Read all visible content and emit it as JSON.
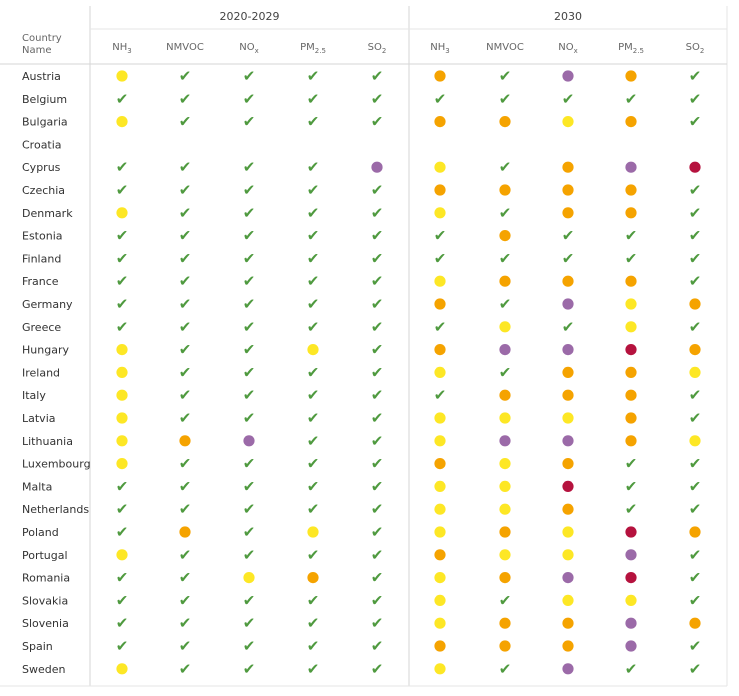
{
  "chart_data": {
    "type": "table",
    "corner_label": [
      "Country",
      "Name"
    ],
    "groups": [
      "2020-2029",
      "2030"
    ],
    "pollutants": [
      {
        "base": "NH",
        "sub": "3"
      },
      {
        "base": "NMVOC",
        "sub": ""
      },
      {
        "base": "NO",
        "sub": "x"
      },
      {
        "base": "PM",
        "sub": "2.5"
      },
      {
        "base": "SO",
        "sub": "2"
      }
    ],
    "status_colors": {
      "check": "#4f9a3f",
      "yellow": "#fde725",
      "orange": "#f5a300",
      "purple": "#9b6aa8",
      "crimson": "#b5123e"
    },
    "rows": [
      {
        "country": "Austria",
        "y2020": [
          "yellow",
          "check",
          "check",
          "check",
          "check"
        ],
        "y2030": [
          "orange",
          "check",
          "purple",
          "orange",
          "check"
        ]
      },
      {
        "country": "Belgium",
        "y2020": [
          "check",
          "check",
          "check",
          "check",
          "check"
        ],
        "y2030": [
          "check",
          "check",
          "check",
          "check",
          "check"
        ]
      },
      {
        "country": "Bulgaria",
        "y2020": [
          "yellow",
          "check",
          "check",
          "check",
          "check"
        ],
        "y2030": [
          "orange",
          "orange",
          "yellow",
          "orange",
          "check"
        ]
      },
      {
        "country": "Croatia",
        "y2020": [
          "",
          "",
          "",
          "",
          ""
        ],
        "y2030": [
          "",
          "",
          "",
          "",
          ""
        ]
      },
      {
        "country": "Cyprus",
        "y2020": [
          "check",
          "check",
          "check",
          "check",
          "purple"
        ],
        "y2030": [
          "yellow",
          "check",
          "orange",
          "purple",
          "crimson"
        ]
      },
      {
        "country": "Czechia",
        "y2020": [
          "check",
          "check",
          "check",
          "check",
          "check"
        ],
        "y2030": [
          "orange",
          "orange",
          "orange",
          "orange",
          "check"
        ]
      },
      {
        "country": "Denmark",
        "y2020": [
          "yellow",
          "check",
          "check",
          "check",
          "check"
        ],
        "y2030": [
          "yellow",
          "check",
          "orange",
          "orange",
          "check"
        ]
      },
      {
        "country": "Estonia",
        "y2020": [
          "check",
          "check",
          "check",
          "check",
          "check"
        ],
        "y2030": [
          "check",
          "orange",
          "check",
          "check",
          "check"
        ]
      },
      {
        "country": "Finland",
        "y2020": [
          "check",
          "check",
          "check",
          "check",
          "check"
        ],
        "y2030": [
          "check",
          "check",
          "check",
          "check",
          "check"
        ]
      },
      {
        "country": "France",
        "y2020": [
          "check",
          "check",
          "check",
          "check",
          "check"
        ],
        "y2030": [
          "yellow",
          "orange",
          "orange",
          "orange",
          "check"
        ]
      },
      {
        "country": "Germany",
        "y2020": [
          "check",
          "check",
          "check",
          "check",
          "check"
        ],
        "y2030": [
          "orange",
          "check",
          "purple",
          "yellow",
          "orange"
        ]
      },
      {
        "country": "Greece",
        "y2020": [
          "check",
          "check",
          "check",
          "check",
          "check"
        ],
        "y2030": [
          "check",
          "yellow",
          "check",
          "yellow",
          "check"
        ]
      },
      {
        "country": "Hungary",
        "y2020": [
          "yellow",
          "check",
          "check",
          "yellow",
          "check"
        ],
        "y2030": [
          "orange",
          "purple",
          "purple",
          "crimson",
          "orange"
        ]
      },
      {
        "country": "Ireland",
        "y2020": [
          "yellow",
          "check",
          "check",
          "check",
          "check"
        ],
        "y2030": [
          "yellow",
          "check",
          "orange",
          "orange",
          "yellow"
        ]
      },
      {
        "country": "Italy",
        "y2020": [
          "yellow",
          "check",
          "check",
          "check",
          "check"
        ],
        "y2030": [
          "check",
          "orange",
          "orange",
          "orange",
          "check"
        ]
      },
      {
        "country": "Latvia",
        "y2020": [
          "yellow",
          "check",
          "check",
          "check",
          "check"
        ],
        "y2030": [
          "yellow",
          "yellow",
          "yellow",
          "orange",
          "check"
        ]
      },
      {
        "country": "Lithuania",
        "y2020": [
          "yellow",
          "orange",
          "purple",
          "check",
          "check"
        ],
        "y2030": [
          "yellow",
          "purple",
          "purple",
          "orange",
          "yellow"
        ]
      },
      {
        "country": "Luxembourg",
        "y2020": [
          "yellow",
          "check",
          "check",
          "check",
          "check"
        ],
        "y2030": [
          "orange",
          "yellow",
          "orange",
          "check",
          "check"
        ]
      },
      {
        "country": "Malta",
        "y2020": [
          "check",
          "check",
          "check",
          "check",
          "check"
        ],
        "y2030": [
          "yellow",
          "yellow",
          "crimson",
          "check",
          "check"
        ]
      },
      {
        "country": "Netherlands",
        "y2020": [
          "check",
          "check",
          "check",
          "check",
          "check"
        ],
        "y2030": [
          "yellow",
          "yellow",
          "orange",
          "check",
          "check"
        ]
      },
      {
        "country": "Poland",
        "y2020": [
          "check",
          "orange",
          "check",
          "yellow",
          "check"
        ],
        "y2030": [
          "yellow",
          "orange",
          "yellow",
          "crimson",
          "orange"
        ]
      },
      {
        "country": "Portugal",
        "y2020": [
          "yellow",
          "check",
          "check",
          "check",
          "check"
        ],
        "y2030": [
          "orange",
          "yellow",
          "yellow",
          "purple",
          "check"
        ]
      },
      {
        "country": "Romania",
        "y2020": [
          "check",
          "check",
          "yellow",
          "orange",
          "check"
        ],
        "y2030": [
          "yellow",
          "orange",
          "purple",
          "crimson",
          "check"
        ]
      },
      {
        "country": "Slovakia",
        "y2020": [
          "check",
          "check",
          "check",
          "check",
          "check"
        ],
        "y2030": [
          "yellow",
          "check",
          "yellow",
          "yellow",
          "check"
        ]
      },
      {
        "country": "Slovenia",
        "y2020": [
          "check",
          "check",
          "check",
          "check",
          "check"
        ],
        "y2030": [
          "yellow",
          "orange",
          "orange",
          "purple",
          "orange"
        ]
      },
      {
        "country": "Spain",
        "y2020": [
          "check",
          "check",
          "check",
          "check",
          "check"
        ],
        "y2030": [
          "orange",
          "orange",
          "orange",
          "purple",
          "check"
        ]
      },
      {
        "country": "Sweden",
        "y2020": [
          "yellow",
          "check",
          "check",
          "check",
          "check"
        ],
        "y2030": [
          "yellow",
          "check",
          "purple",
          "check",
          "check"
        ]
      }
    ]
  }
}
